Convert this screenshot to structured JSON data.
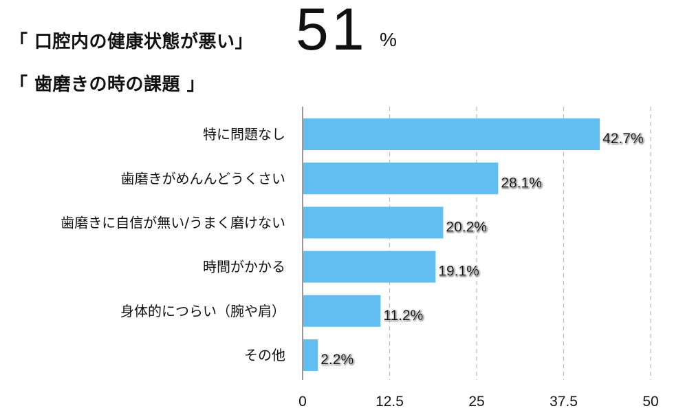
{
  "header": {
    "title_line1": "「 口腔内の健康状態が悪い」",
    "headline_value": "51",
    "headline_unit": "%",
    "title_line2": "「 歯磨きの時の課題 」"
  },
  "colors": {
    "bar": "#62bdf1",
    "grid": "#bbbbbb",
    "axis": "#999999"
  },
  "chart_data": {
    "type": "bar",
    "orientation": "horizontal",
    "title": "歯磨きの時の課題",
    "categories": [
      "特に問題なし",
      "歯磨きがめんんどうくさい",
      "歯磨きに自信が無い/うまく磨けない",
      "時間がかかる",
      "身体的につらい（腕や肩）",
      "その他"
    ],
    "values": [
      42.7,
      28.1,
      20.2,
      19.1,
      11.2,
      2.2
    ],
    "value_labels": [
      "42.7%",
      "28.1%",
      "20.2%",
      "19.1%",
      "11.2%",
      "2.2%"
    ],
    "xlim": [
      0,
      50
    ],
    "ticks": [
      0,
      12.5,
      25,
      37.5,
      50
    ],
    "tick_labels": [
      "0",
      "12.5",
      "25",
      "37.5",
      "50"
    ],
    "grid": true,
    "legend": "none"
  }
}
